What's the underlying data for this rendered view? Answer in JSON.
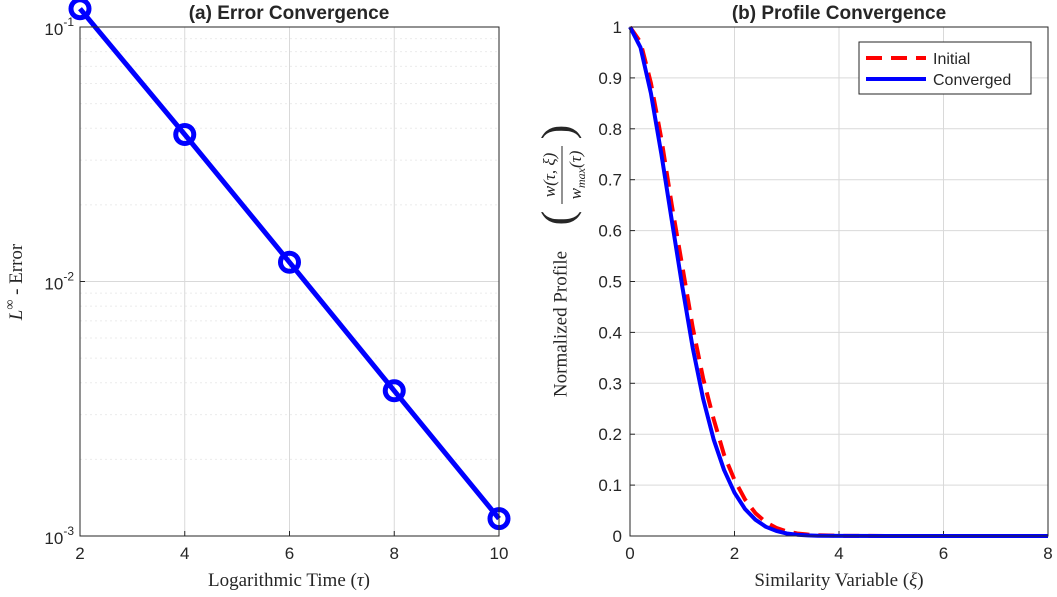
{
  "chart_data": [
    {
      "type": "line",
      "title": "(a) Error Convergence",
      "xlabel_text": "Logarithmic Time (",
      "xlabel_symbol": "τ",
      "xlabel_close": ")",
      "ylabel_symbol": "L",
      "ylabel_sup": "∞",
      "ylabel_text": " - Error",
      "y_scale": "log",
      "xlim": [
        2,
        10
      ],
      "ylim": [
        0.001,
        0.1
      ],
      "x_ticks": [
        "2",
        "4",
        "6",
        "8",
        "10"
      ],
      "y_tick_bases": [
        "10",
        "10",
        "10"
      ],
      "y_tick_exponents": [
        "-1",
        "-2",
        "-3"
      ],
      "grid": true,
      "series": [
        {
          "x": [
            2,
            4,
            6,
            8,
            10
          ],
          "y": [
            0.118,
            0.0378,
            0.0119,
            0.00372,
            0.00117
          ],
          "color": "#0000ff",
          "marker": "circle"
        }
      ]
    },
    {
      "type": "line",
      "title": "(b) Profile Convergence",
      "xlabel_text": "Similarity Variable (",
      "xlabel_symbol": "ξ",
      "xlabel_close": ")",
      "ylabel_text": "Normalized Profile",
      "ylabel_frac_num": "w(τ, ξ)",
      "ylabel_frac_den": "w",
      "ylabel_frac_den_sub": "max",
      "ylabel_frac_den_tail": "(τ)",
      "xlim": [
        0,
        8
      ],
      "ylim": [
        0,
        1
      ],
      "x_ticks": [
        "0",
        "2",
        "4",
        "6",
        "8"
      ],
      "y_ticks": [
        "0",
        "0.1",
        "0.2",
        "0.3",
        "0.4",
        "0.5",
        "0.6",
        "0.7",
        "0.8",
        "0.9",
        "1"
      ],
      "grid": true,
      "legend_position": "top-right",
      "series": [
        {
          "name": "Initial",
          "color": "#ff0000",
          "style": "dashed",
          "x": [
            0,
            0.2,
            0.4,
            0.6,
            0.8,
            1.0,
            1.2,
            1.4,
            1.6,
            1.8,
            2.0,
            2.2,
            2.4,
            2.6,
            2.8,
            3.0,
            3.2,
            3.4,
            3.6,
            4.0,
            5.0,
            6.0,
            7.0,
            8.0
          ],
          "y": [
            1.0,
            0.97,
            0.89,
            0.78,
            0.65,
            0.53,
            0.41,
            0.31,
            0.23,
            0.16,
            0.11,
            0.072,
            0.045,
            0.027,
            0.016,
            0.009,
            0.005,
            0.003,
            0.0015,
            0.0004,
            0,
            0,
            0,
            0
          ]
        },
        {
          "name": "Converged",
          "color": "#0000ff",
          "style": "solid",
          "x": [
            0,
            0.2,
            0.4,
            0.6,
            0.8,
            1.0,
            1.2,
            1.4,
            1.6,
            1.8,
            2.0,
            2.2,
            2.4,
            2.6,
            2.8,
            3.0,
            3.2,
            3.4,
            3.6,
            4.0,
            5.0,
            6.0,
            7.0,
            8.0
          ],
          "y": [
            1.0,
            0.96,
            0.87,
            0.75,
            0.62,
            0.49,
            0.37,
            0.27,
            0.19,
            0.13,
            0.085,
            0.053,
            0.032,
            0.018,
            0.01,
            0.005,
            0.0026,
            0.0012,
            0.0005,
            0.0001,
            0,
            0,
            0,
            0
          ]
        }
      ]
    }
  ]
}
